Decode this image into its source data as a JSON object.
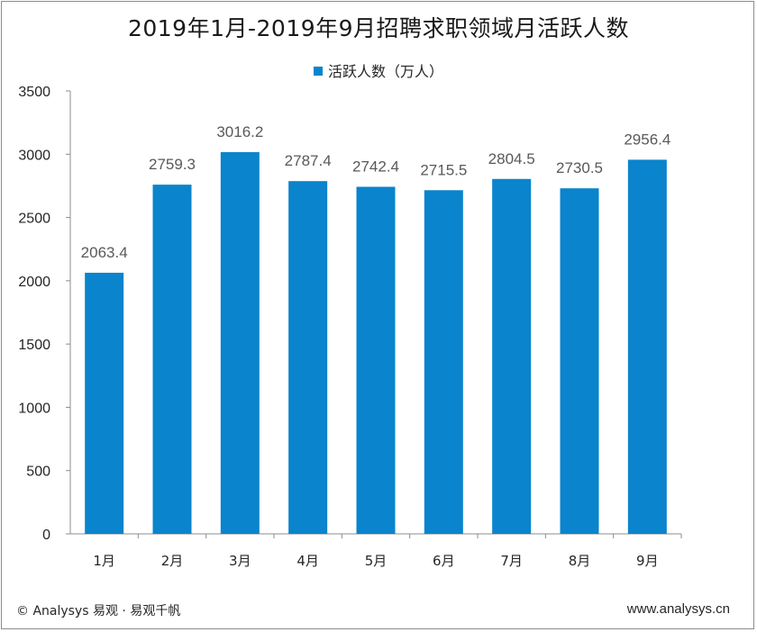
{
  "chart_data": {
    "type": "bar",
    "title": "2019年1月-2019年9月招聘求职领域月活跃人数",
    "categories": [
      "1月",
      "2月",
      "3月",
      "4月",
      "5月",
      "6月",
      "7月",
      "8月",
      "9月"
    ],
    "series": [
      {
        "name": "活跃人数（万人）",
        "values": [
          2063.4,
          2759.3,
          3016.2,
          2787.4,
          2742.4,
          2715.5,
          2804.5,
          2730.5,
          2956.4
        ]
      }
    ],
    "data_labels": [
      "2063.4",
      "2759.3",
      "3016.2",
      "2787.4",
      "2742.4",
      "2715.5",
      "2804.5",
      "2730.5",
      "2956.4"
    ],
    "y_ticks": [
      "0",
      "500",
      "1000",
      "1500",
      "2000",
      "2500",
      "3000",
      "3500"
    ],
    "ylim": [
      0,
      3500
    ],
    "grid": false,
    "legend_position": "top-center",
    "bar_color": "#0a84cc"
  },
  "footer": {
    "source": "© Analysys 易观 · 易观千帆",
    "website": "www.analysys.cn"
  }
}
